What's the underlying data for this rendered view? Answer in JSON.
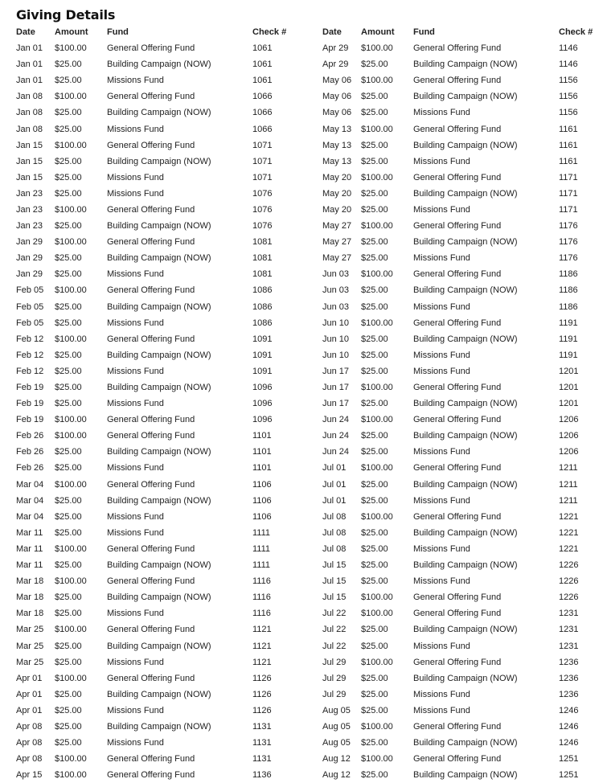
{
  "title": "Giving Details",
  "headers": {
    "date": "Date",
    "amount": "Amount",
    "fund": "Fund",
    "check": "Check #"
  },
  "left_rows": [
    {
      "date": "Jan 01",
      "amount": "$100.00",
      "fund": "General Offering Fund",
      "check": "1061"
    },
    {
      "date": "Jan 01",
      "amount": "$25.00",
      "fund": "Building Campaign (NOW)",
      "check": "1061"
    },
    {
      "date": "Jan 01",
      "amount": "$25.00",
      "fund": "Missions Fund",
      "check": "1061"
    },
    {
      "date": "Jan 08",
      "amount": "$100.00",
      "fund": "General Offering Fund",
      "check": "1066"
    },
    {
      "date": "Jan 08",
      "amount": "$25.00",
      "fund": "Building Campaign (NOW)",
      "check": "1066"
    },
    {
      "date": "Jan 08",
      "amount": "$25.00",
      "fund": "Missions Fund",
      "check": "1066"
    },
    {
      "date": "Jan 15",
      "amount": "$100.00",
      "fund": "General Offering Fund",
      "check": "1071"
    },
    {
      "date": "Jan 15",
      "amount": "$25.00",
      "fund": "Building Campaign (NOW)",
      "check": "1071"
    },
    {
      "date": "Jan 15",
      "amount": "$25.00",
      "fund": "Missions Fund",
      "check": "1071"
    },
    {
      "date": "Jan 23",
      "amount": "$25.00",
      "fund": "Missions Fund",
      "check": "1076"
    },
    {
      "date": "Jan 23",
      "amount": "$100.00",
      "fund": "General Offering Fund",
      "check": "1076"
    },
    {
      "date": "Jan 23",
      "amount": "$25.00",
      "fund": "Building Campaign (NOW)",
      "check": "1076"
    },
    {
      "date": "Jan 29",
      "amount": "$100.00",
      "fund": "General Offering Fund",
      "check": "1081"
    },
    {
      "date": "Jan 29",
      "amount": "$25.00",
      "fund": "Building Campaign (NOW)",
      "check": "1081"
    },
    {
      "date": "Jan 29",
      "amount": "$25.00",
      "fund": "Missions Fund",
      "check": "1081"
    },
    {
      "date": "Feb 05",
      "amount": "$100.00",
      "fund": "General Offering Fund",
      "check": "1086"
    },
    {
      "date": "Feb 05",
      "amount": "$25.00",
      "fund": "Building Campaign (NOW)",
      "check": "1086"
    },
    {
      "date": "Feb 05",
      "amount": "$25.00",
      "fund": "Missions Fund",
      "check": "1086"
    },
    {
      "date": "Feb 12",
      "amount": "$100.00",
      "fund": "General Offering Fund",
      "check": "1091"
    },
    {
      "date": "Feb 12",
      "amount": "$25.00",
      "fund": "Building Campaign (NOW)",
      "check": "1091"
    },
    {
      "date": "Feb 12",
      "amount": "$25.00",
      "fund": "Missions Fund",
      "check": "1091"
    },
    {
      "date": "Feb 19",
      "amount": "$25.00",
      "fund": "Building Campaign (NOW)",
      "check": "1096"
    },
    {
      "date": "Feb 19",
      "amount": "$25.00",
      "fund": "Missions Fund",
      "check": "1096"
    },
    {
      "date": "Feb 19",
      "amount": "$100.00",
      "fund": "General Offering Fund",
      "check": "1096"
    },
    {
      "date": "Feb 26",
      "amount": "$100.00",
      "fund": "General Offering Fund",
      "check": "1101"
    },
    {
      "date": "Feb 26",
      "amount": "$25.00",
      "fund": "Building Campaign (NOW)",
      "check": "1101"
    },
    {
      "date": "Feb 26",
      "amount": "$25.00",
      "fund": "Missions Fund",
      "check": "1101"
    },
    {
      "date": "Mar 04",
      "amount": "$100.00",
      "fund": "General Offering Fund",
      "check": "1106"
    },
    {
      "date": "Mar 04",
      "amount": "$25.00",
      "fund": "Building Campaign (NOW)",
      "check": "1106"
    },
    {
      "date": "Mar 04",
      "amount": "$25.00",
      "fund": "Missions Fund",
      "check": "1106"
    },
    {
      "date": "Mar 11",
      "amount": "$25.00",
      "fund": "Missions Fund",
      "check": "1111"
    },
    {
      "date": "Mar 11",
      "amount": "$100.00",
      "fund": "General Offering Fund",
      "check": "1111"
    },
    {
      "date": "Mar 11",
      "amount": "$25.00",
      "fund": "Building Campaign (NOW)",
      "check": "1111"
    },
    {
      "date": "Mar 18",
      "amount": "$100.00",
      "fund": "General Offering Fund",
      "check": "1116"
    },
    {
      "date": "Mar 18",
      "amount": "$25.00",
      "fund": "Building Campaign (NOW)",
      "check": "1116"
    },
    {
      "date": "Mar 18",
      "amount": "$25.00",
      "fund": "Missions Fund",
      "check": "1116"
    },
    {
      "date": "Mar 25",
      "amount": "$100.00",
      "fund": "General Offering Fund",
      "check": "1121"
    },
    {
      "date": "Mar 25",
      "amount": "$25.00",
      "fund": "Building Campaign (NOW)",
      "check": "1121"
    },
    {
      "date": "Mar 25",
      "amount": "$25.00",
      "fund": "Missions Fund",
      "check": "1121"
    },
    {
      "date": "Apr 01",
      "amount": "$100.00",
      "fund": "General Offering Fund",
      "check": "1126"
    },
    {
      "date": "Apr 01",
      "amount": "$25.00",
      "fund": "Building Campaign (NOW)",
      "check": "1126"
    },
    {
      "date": "Apr 01",
      "amount": "$25.00",
      "fund": "Missions Fund",
      "check": "1126"
    },
    {
      "date": "Apr 08",
      "amount": "$25.00",
      "fund": "Building Campaign (NOW)",
      "check": "1131"
    },
    {
      "date": "Apr 08",
      "amount": "$25.00",
      "fund": "Missions Fund",
      "check": "1131"
    },
    {
      "date": "Apr 08",
      "amount": "$100.00",
      "fund": "General Offering Fund",
      "check": "1131"
    },
    {
      "date": "Apr 15",
      "amount": "$100.00",
      "fund": "General Offering Fund",
      "check": "1136"
    }
  ],
  "right_rows": [
    {
      "date": "Apr 29",
      "amount": "$100.00",
      "fund": "General Offering Fund",
      "check": "1146"
    },
    {
      "date": "Apr 29",
      "amount": "$25.00",
      "fund": "Building Campaign (NOW)",
      "check": "1146"
    },
    {
      "date": "May 06",
      "amount": "$100.00",
      "fund": "General Offering Fund",
      "check": "1156"
    },
    {
      "date": "May 06",
      "amount": "$25.00",
      "fund": "Building Campaign (NOW)",
      "check": "1156"
    },
    {
      "date": "May 06",
      "amount": "$25.00",
      "fund": "Missions Fund",
      "check": "1156"
    },
    {
      "date": "May 13",
      "amount": "$100.00",
      "fund": "General Offering Fund",
      "check": "1161"
    },
    {
      "date": "May 13",
      "amount": "$25.00",
      "fund": "Building Campaign (NOW)",
      "check": "1161"
    },
    {
      "date": "May 13",
      "amount": "$25.00",
      "fund": "Missions Fund",
      "check": "1161"
    },
    {
      "date": "May 20",
      "amount": "$100.00",
      "fund": "General Offering Fund",
      "check": "1171"
    },
    {
      "date": "May 20",
      "amount": "$25.00",
      "fund": "Building Campaign (NOW)",
      "check": "1171"
    },
    {
      "date": "May 20",
      "amount": "$25.00",
      "fund": "Missions Fund",
      "check": "1171"
    },
    {
      "date": "May 27",
      "amount": "$100.00",
      "fund": "General Offering Fund",
      "check": "1176"
    },
    {
      "date": "May 27",
      "amount": "$25.00",
      "fund": "Building Campaign (NOW)",
      "check": "1176"
    },
    {
      "date": "May 27",
      "amount": "$25.00",
      "fund": "Missions Fund",
      "check": "1176"
    },
    {
      "date": "Jun 03",
      "amount": "$100.00",
      "fund": "General Offering Fund",
      "check": "1186"
    },
    {
      "date": "Jun 03",
      "amount": "$25.00",
      "fund": "Building Campaign (NOW)",
      "check": "1186"
    },
    {
      "date": "Jun 03",
      "amount": "$25.00",
      "fund": "Missions Fund",
      "check": "1186"
    },
    {
      "date": "Jun 10",
      "amount": "$100.00",
      "fund": "General Offering Fund",
      "check": "1191"
    },
    {
      "date": "Jun 10",
      "amount": "$25.00",
      "fund": "Building Campaign (NOW)",
      "check": "1191"
    },
    {
      "date": "Jun 10",
      "amount": "$25.00",
      "fund": "Missions Fund",
      "check": "1191"
    },
    {
      "date": "Jun 17",
      "amount": "$25.00",
      "fund": "Missions Fund",
      "check": "1201"
    },
    {
      "date": "Jun 17",
      "amount": "$100.00",
      "fund": "General Offering Fund",
      "check": "1201"
    },
    {
      "date": "Jun 17",
      "amount": "$25.00",
      "fund": "Building Campaign (NOW)",
      "check": "1201"
    },
    {
      "date": "Jun 24",
      "amount": "$100.00",
      "fund": "General Offering Fund",
      "check": "1206"
    },
    {
      "date": "Jun 24",
      "amount": "$25.00",
      "fund": "Building Campaign (NOW)",
      "check": "1206"
    },
    {
      "date": "Jun 24",
      "amount": "$25.00",
      "fund": "Missions Fund",
      "check": "1206"
    },
    {
      "date": "Jul 01",
      "amount": "$100.00",
      "fund": "General Offering Fund",
      "check": "1211"
    },
    {
      "date": "Jul 01",
      "amount": "$25.00",
      "fund": "Building Campaign (NOW)",
      "check": "1211"
    },
    {
      "date": "Jul 01",
      "amount": "$25.00",
      "fund": "Missions Fund",
      "check": "1211"
    },
    {
      "date": "Jul 08",
      "amount": "$100.00",
      "fund": "General Offering Fund",
      "check": "1221"
    },
    {
      "date": "Jul 08",
      "amount": "$25.00",
      "fund": "Building Campaign (NOW)",
      "check": "1221"
    },
    {
      "date": "Jul 08",
      "amount": "$25.00",
      "fund": "Missions Fund",
      "check": "1221"
    },
    {
      "date": "Jul 15",
      "amount": "$25.00",
      "fund": "Building Campaign (NOW)",
      "check": "1226"
    },
    {
      "date": "Jul 15",
      "amount": "$25.00",
      "fund": "Missions Fund",
      "check": "1226"
    },
    {
      "date": "Jul 15",
      "amount": "$100.00",
      "fund": "General Offering Fund",
      "check": "1226"
    },
    {
      "date": "Jul 22",
      "amount": "$100.00",
      "fund": "General Offering Fund",
      "check": "1231"
    },
    {
      "date": "Jul 22",
      "amount": "$25.00",
      "fund": "Building Campaign (NOW)",
      "check": "1231"
    },
    {
      "date": "Jul 22",
      "amount": "$25.00",
      "fund": "Missions Fund",
      "check": "1231"
    },
    {
      "date": "Jul 29",
      "amount": "$100.00",
      "fund": "General Offering Fund",
      "check": "1236"
    },
    {
      "date": "Jul 29",
      "amount": "$25.00",
      "fund": "Building Campaign (NOW)",
      "check": "1236"
    },
    {
      "date": "Jul 29",
      "amount": "$25.00",
      "fund": "Missions Fund",
      "check": "1236"
    },
    {
      "date": "Aug 05",
      "amount": "$25.00",
      "fund": "Missions Fund",
      "check": "1246"
    },
    {
      "date": "Aug 05",
      "amount": "$100.00",
      "fund": "General Offering Fund",
      "check": "1246"
    },
    {
      "date": "Aug 05",
      "amount": "$25.00",
      "fund": "Building Campaign (NOW)",
      "check": "1246"
    },
    {
      "date": "Aug 12",
      "amount": "$100.00",
      "fund": "General Offering Fund",
      "check": "1251"
    },
    {
      "date": "Aug 12",
      "amount": "$25.00",
      "fund": "Building Campaign (NOW)",
      "check": "1251"
    }
  ]
}
